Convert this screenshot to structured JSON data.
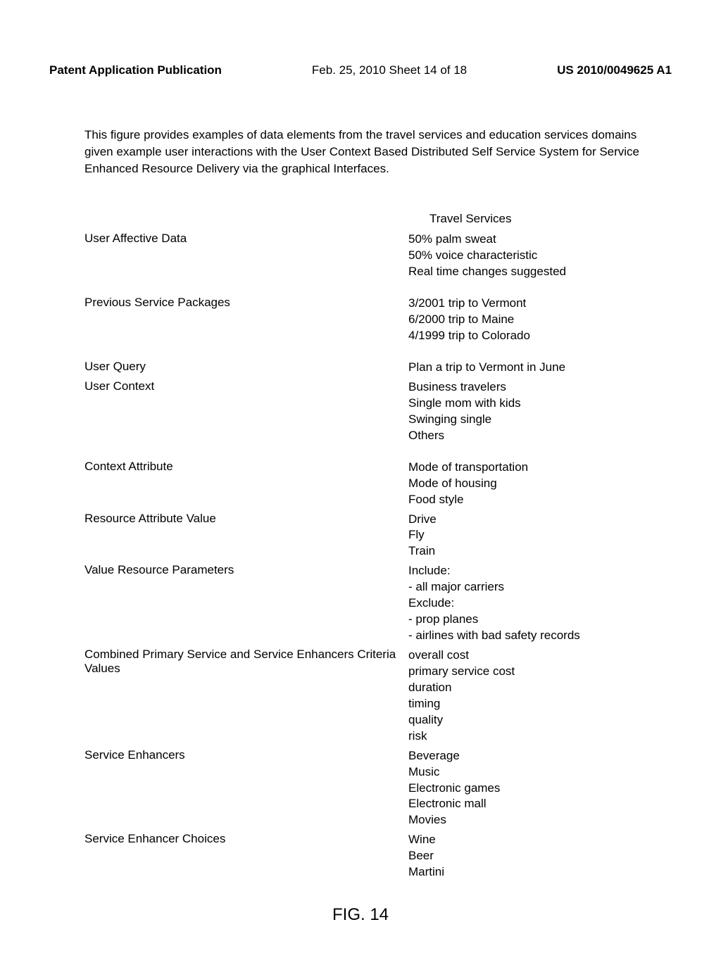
{
  "header": {
    "left": "Patent Application Publication",
    "center": "Feb. 25, 2010  Sheet 14 of 18",
    "right": "US 2010/0049625 A1"
  },
  "intro": "This figure provides examples of data elements from the travel services and education services domains given example user interactions with the User Context Based Distributed Self Service System for Service Enhanced Resource Delivery via the graphical Interfaces.",
  "columnHeader": "Travel Services",
  "rows": [
    {
      "label": "User Affective Data",
      "values": [
        "50% palm sweat",
        "50% voice characteristic",
        "Real time changes suggested"
      ]
    },
    {
      "label": "Previous Service Packages",
      "values": [
        "3/2001 trip to Vermont",
        "6/2000 trip to Maine",
        "4/1999 trip to Colorado"
      ]
    },
    {
      "label": "User Query",
      "values": [
        "Plan a trip to Vermont in June"
      ],
      "tight": true
    },
    {
      "label": "User Context",
      "values": [
        "Business travelers",
        "Single mom with kids",
        "Swinging single",
        "Others"
      ]
    },
    {
      "label": "Context Attribute",
      "values": [
        "Mode of transportation",
        "Mode of housing",
        "Food style"
      ],
      "tight": true
    },
    {
      "label": "Resource Attribute Value",
      "values": [
        "Drive",
        "Fly",
        "Train"
      ],
      "tight": true
    },
    {
      "label": "Value Resource Parameters",
      "values": [
        "Include:",
        "- all major carriers",
        "Exclude:",
        "- prop planes",
        "- airlines with bad safety records"
      ],
      "tight": true
    },
    {
      "label": "Combined Primary Service and Service Enhancers Criteria Values",
      "values": [
        "overall cost",
        "primary service cost",
        "duration",
        "timing",
        "quality",
        "risk"
      ],
      "tight": true
    },
    {
      "label": "Service Enhancers",
      "values": [
        "Beverage",
        "Music",
        "Electronic games",
        "Electronic mall",
        "Movies"
      ],
      "tight": true
    },
    {
      "label": "Service Enhancer Choices",
      "values": [
        "Wine",
        "Beer",
        "Martini"
      ]
    }
  ],
  "figureLabel": "FIG. 14"
}
